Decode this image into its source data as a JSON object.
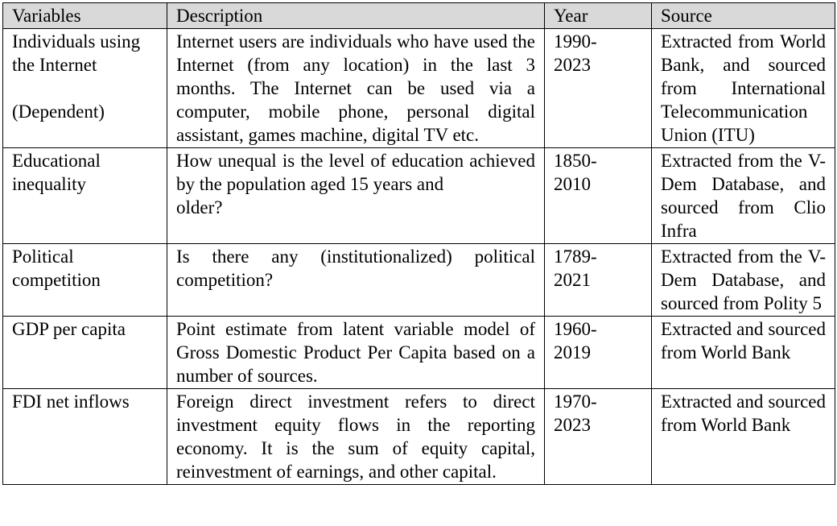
{
  "table": {
    "headers": [
      "Variables",
      "Description",
      "Year",
      "Source"
    ],
    "rows": [
      {
        "variable": "Individuals using the Internet",
        "variable_note": "(Dependent)",
        "description": "Internet users are individuals who have used the Internet (from any location) in the last 3 months. The Internet can be used via a computer, mobile phone, personal digital assistant, games machine, digital TV etc.",
        "year_start": "1990-",
        "year_end": "2023",
        "source": "Extracted from World Bank, and sourced from International Telecommunication Union (ITU)"
      },
      {
        "variable": "Educational inequality",
        "variable_note": "",
        "description": "How unequal is the level of education achieved by the population aged 15 years and",
        "description_tail": "older?",
        "year_start": "1850-",
        "year_end": "2010",
        "source": "Extracted from the V-Dem Database, and sourced from Clio Infra"
      },
      {
        "variable": "Political competition",
        "variable_note": "",
        "description": "Is there any (institutionalized) political competition?",
        "year_start": "1789-",
        "year_end": "2021",
        "source": "Extracted from the V-Dem Database, and sourced from Polity 5"
      },
      {
        "variable": "GDP per capita",
        "variable_note": "",
        "description": "Point estimate from latent variable model of Gross Domestic Product Per Capita based on a number of sources.",
        "year_start": "1960-",
        "year_end": "2019",
        "source": "Extracted and sourced from World Bank"
      },
      {
        "variable": "FDI net inflows",
        "variable_note": "",
        "description": "Foreign direct investment refers to direct investment equity flows in the reporting economy. It is the sum of equity capital, reinvestment of earnings, and other capital.",
        "year_start": "1970-",
        "year_end": "2023",
        "source": "Extracted and sourced from World Bank"
      }
    ]
  },
  "colors": {
    "header_bg": "#d9d9d9",
    "border": "#000000",
    "text": "#000000"
  }
}
